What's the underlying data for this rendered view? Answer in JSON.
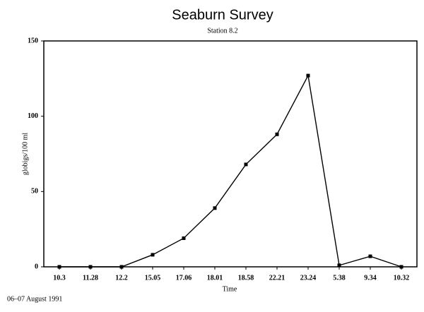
{
  "chart_data": {
    "type": "line",
    "title": "Seaburn Survey",
    "subtitle": "Station 8.2",
    "y_label": "globigs/100 ml",
    "x_label": "Time",
    "note": "06–07 August 1991",
    "categories": [
      "10.3",
      "11.28",
      "12.2",
      "15.05",
      "17.06",
      "18.01",
      "18.58",
      "22.21",
      "23.24",
      "5.38",
      "9.34",
      "10.32"
    ],
    "series": [
      {
        "name": "Station 8.2",
        "color": "#000000",
        "values": [
          0,
          0,
          0,
          8,
          19,
          39,
          68,
          88,
          127,
          1,
          7,
          0
        ]
      }
    ],
    "ylim": [
      0,
      150
    ],
    "yticks": [
      0,
      50,
      100,
      150
    ],
    "grid": false
  }
}
